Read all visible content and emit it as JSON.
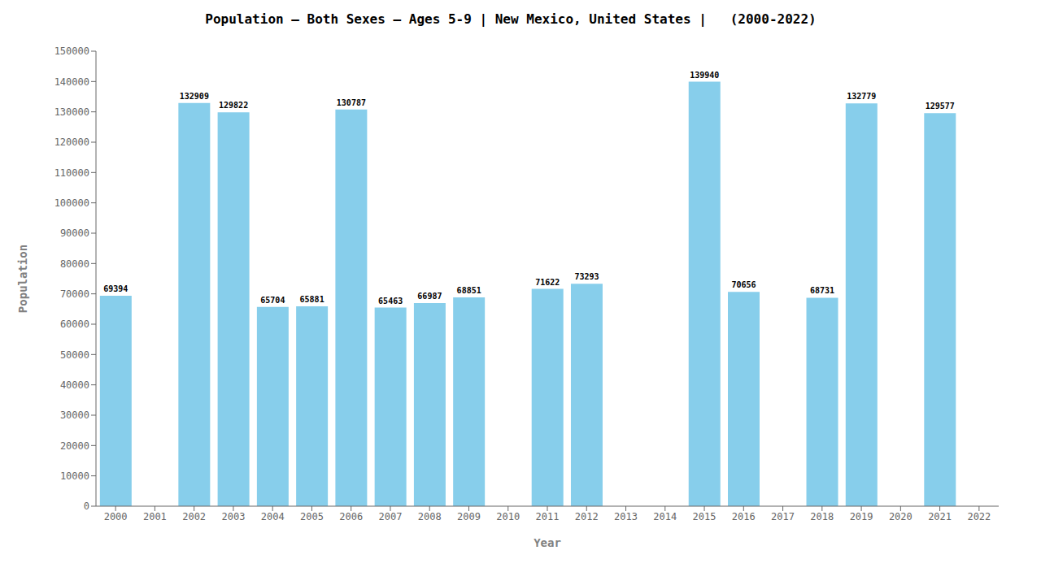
{
  "chart_data": {
    "type": "bar",
    "title": "Population – Both Sexes – Ages 5-9 | New Mexico, United States |   (2000-2022)",
    "x_label": "Year",
    "y_label": "Population",
    "categories": [
      "2000",
      "2001",
      "2002",
      "2003",
      "2004",
      "2005",
      "2006",
      "2007",
      "2008",
      "2009",
      "2010",
      "2011",
      "2012",
      "2013",
      "2014",
      "2015",
      "2016",
      "2017",
      "2018",
      "2019",
      "2020",
      "2021",
      "2022"
    ],
    "values": [
      69394,
      0,
      132909,
      129822,
      65704,
      65881,
      130787,
      65463,
      66987,
      68851,
      0,
      71622,
      73293,
      0,
      0,
      139940,
      70656,
      0,
      68731,
      132779,
      0,
      129577,
      0
    ],
    "color": "#87CEEB",
    "ylim": [
      0,
      150000
    ],
    "yticks": [
      0,
      10000,
      20000,
      30000,
      40000,
      50000,
      60000,
      70000,
      80000,
      90000,
      100000,
      110000,
      120000,
      130000,
      140000,
      150000
    ],
    "grid": false,
    "data_labels": true
  }
}
